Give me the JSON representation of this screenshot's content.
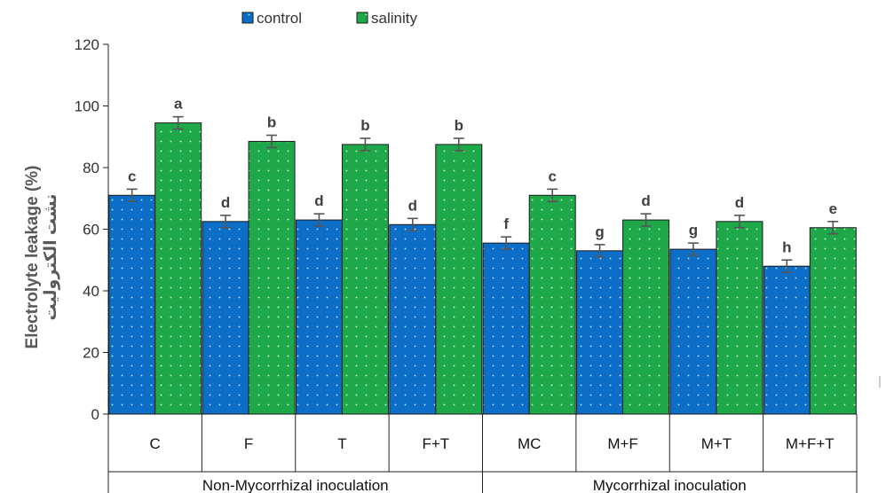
{
  "chart_data": {
    "type": "bar",
    "ylabel": "Electrolyte leakage (%)",
    "ylabel_secondary": "نشت الکترولیت",
    "ylim": [
      0,
      120
    ],
    "yticks": [
      0,
      20,
      40,
      60,
      80,
      100,
      120
    ],
    "grid": false,
    "legend_position": "top-center",
    "categories": [
      "C",
      "F",
      "T",
      "F+T",
      "MC",
      "M+F",
      "M+T",
      "M+F+T"
    ],
    "groups": [
      {
        "label": "Non-Mycorrhizal inoculation",
        "span": [
          0,
          3
        ]
      },
      {
        "label": "Mycorrhizal inoculation",
        "span": [
          4,
          7
        ]
      }
    ],
    "series": [
      {
        "name": "control",
        "color": "#0c6ec7",
        "values": [
          71,
          62.5,
          63,
          61.5,
          55.5,
          53,
          53.5,
          48
        ],
        "errors": [
          2,
          2,
          2,
          2,
          2,
          2,
          2,
          2
        ],
        "letters": [
          "c",
          "d",
          "d",
          "d",
          "f",
          "g",
          "g",
          "h"
        ]
      },
      {
        "name": "salinity",
        "color": "#1fa84a",
        "values": [
          94.5,
          88.5,
          87.5,
          87.5,
          71,
          63,
          62.5,
          60.5
        ],
        "errors": [
          2,
          2,
          2,
          2,
          2,
          2,
          2,
          2
        ],
        "letters": [
          "a",
          "b",
          "b",
          "b",
          "c",
          "d",
          "d",
          "e"
        ]
      }
    ]
  }
}
